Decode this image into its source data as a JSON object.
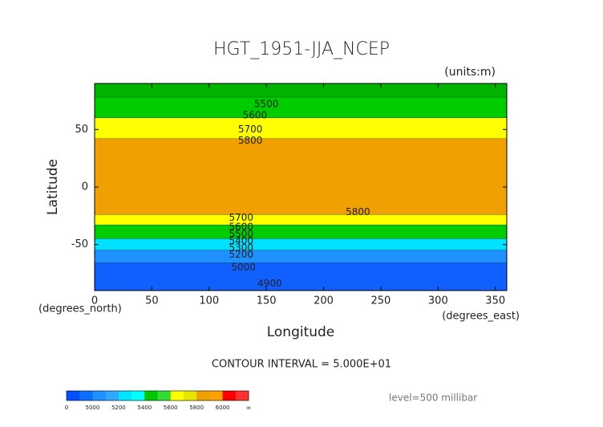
{
  "chart_data": {
    "type": "contour",
    "title": "HGT_1951-JJA_NCEP",
    "units": "(units:m)",
    "x_label": "Longitude",
    "y_label": "Latitude",
    "x_unit_label": "(degrees_east)",
    "y_unit_label": "(degrees_north)",
    "xlim": [
      0,
      360
    ],
    "ylim": [
      -90,
      90
    ],
    "xticks": [
      0,
      50,
      100,
      150,
      200,
      250,
      300,
      350
    ],
    "yticks": [
      -50,
      0,
      50
    ],
    "bands": [
      {
        "from": 78,
        "to": 90,
        "color": "#00b400"
      },
      {
        "from": 60,
        "to": 78,
        "color": "#00cc00"
      },
      {
        "from": 42,
        "to": 60,
        "color": "#ffff00"
      },
      {
        "from": -24,
        "to": 42,
        "color": "#f0a000"
      },
      {
        "from": -33,
        "to": -24,
        "color": "#ffff00"
      },
      {
        "from": -45,
        "to": -33,
        "color": "#00cc00"
      },
      {
        "from": -55,
        "to": -45,
        "color": "#00e0ff"
      },
      {
        "from": -66,
        "to": -55,
        "color": "#1e90ff"
      },
      {
        "from": -90,
        "to": -66,
        "color": "#1060ff"
      }
    ],
    "contour_labels": [
      {
        "value": 5500,
        "lon": 150,
        "lat": 72
      },
      {
        "value": 5600,
        "lon": 140,
        "lat": 62
      },
      {
        "value": 5700,
        "lon": 136,
        "lat": 50
      },
      {
        "value": 5800,
        "lon": 136,
        "lat": 40
      },
      {
        "value": 5800,
        "lon": 230,
        "lat": -22
      },
      {
        "value": 5700,
        "lon": 128,
        "lat": -27
      },
      {
        "value": 5600,
        "lon": 128,
        "lat": -35
      },
      {
        "value": 5500,
        "lon": 128,
        "lat": -41
      },
      {
        "value": 5400,
        "lon": 128,
        "lat": -47
      },
      {
        "value": 5300,
        "lon": 128,
        "lat": -53
      },
      {
        "value": 5200,
        "lon": 128,
        "lat": -59
      },
      {
        "value": 5000,
        "lon": 130,
        "lat": -70
      },
      {
        "value": 4900,
        "lon": 153,
        "lat": -84
      }
    ],
    "contour_interval": "CONTOUR INTERVAL = 5.000E+01",
    "level": "level=500 millibar",
    "colorbar": {
      "ticks": [
        0,
        5000,
        5200,
        5400,
        5600,
        5800,
        6000
      ],
      "end_label": "∞",
      "colors": [
        "#0050ff",
        "#0a6eff",
        "#1e90ff",
        "#30a8ff",
        "#00e5ff",
        "#00ffff",
        "#00c800",
        "#32dc32",
        "#ffff00",
        "#e6e600",
        "#f0a000",
        "#ffa000",
        "#ff0000",
        "#ff3030"
      ]
    }
  }
}
